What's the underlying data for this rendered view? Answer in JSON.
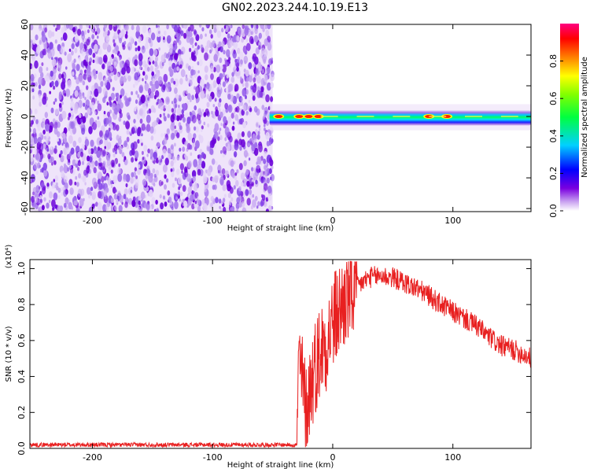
{
  "title": "GN02.2023.244.10.19.E13",
  "chart_data": [
    {
      "type": "heatmap",
      "xlabel": "Height of straight line (km)",
      "ylabel": "Frequency (Hz)",
      "xlim": [
        -252,
        165
      ],
      "ylim": [
        -62,
        60
      ],
      "xticks": [
        -200,
        -100,
        0,
        100
      ],
      "yticks": [
        60,
        40,
        20,
        0,
        -20,
        -40,
        -60
      ],
      "noise_region_x": [
        -252,
        -50
      ],
      "signal_band_y": [
        -6,
        4
      ],
      "hot_spots_x": [
        -45,
        -28,
        -20,
        -12,
        80,
        95
      ],
      "colorbar": {
        "label": "Normalized spectral amplitude",
        "range": [
          0.0,
          1.0
        ],
        "ticks": [
          "0.0",
          "0.2",
          "0.4",
          "0.6",
          "0.8"
        ],
        "colors": [
          "#ffffff",
          "#c8a0f0",
          "#7a00e0",
          "#0000ff",
          "#00d0ff",
          "#00ff40",
          "#80ff00",
          "#ffff00",
          "#ff8000",
          "#ff0000",
          "#ff0080"
        ]
      },
      "grid": false
    },
    {
      "type": "line",
      "xlabel": "Height of straight line (km)",
      "ylabel": "SNR (10 * v/v)",
      "yscale_label": "(x10⁴)",
      "xlim": [
        -252,
        165
      ],
      "ylim": [
        0,
        1.05
      ],
      "xticks": [
        -200,
        -100,
        0,
        100
      ],
      "yticks": [
        "0.0",
        "0.2",
        "0.4",
        "0.6",
        "0.8",
        "1.0"
      ],
      "series": [
        {
          "color": "#e82020",
          "x": [
            -252,
            -200,
            -150,
            -100,
            -50,
            -30,
            -28,
            -25,
            -22,
            -20,
            -15,
            -10,
            -5,
            0,
            10,
            20,
            30,
            40,
            50,
            60,
            70,
            80,
            90,
            100,
            110,
            120,
            130,
            140,
            150,
            160,
            165
          ],
          "y": [
            0.02,
            0.02,
            0.02,
            0.02,
            0.02,
            0.02,
            0.5,
            0.35,
            0.2,
            0.3,
            0.45,
            0.55,
            0.6,
            0.7,
            0.82,
            0.9,
            0.95,
            0.96,
            0.95,
            0.92,
            0.89,
            0.85,
            0.8,
            0.76,
            0.72,
            0.68,
            0.62,
            0.57,
            0.55,
            0.52,
            0.5
          ]
        }
      ],
      "grid": false
    }
  ]
}
